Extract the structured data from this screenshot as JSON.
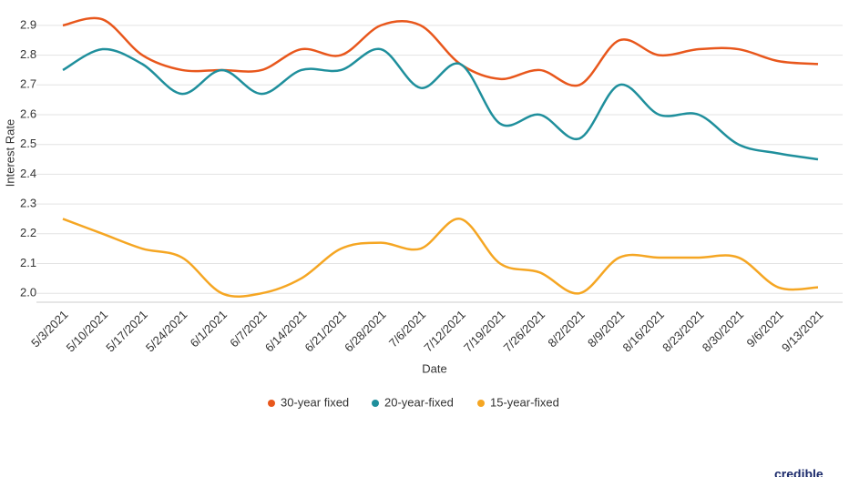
{
  "chart_data": {
    "type": "line",
    "y_label": "Interest Rate",
    "x_label": "Date",
    "categories": [
      "5/3/2021",
      "5/10/2021",
      "5/17/2021",
      "5/24/2021",
      "6/1/2021",
      "6/7/2021",
      "6/14/2021",
      "6/21/2021",
      "6/28/2021",
      "7/6/2021",
      "7/12/2021",
      "7/19/2021",
      "7/26/2021",
      "8/2/2021",
      "8/9/2021",
      "8/16/2021",
      "8/23/2021",
      "8/30/2021",
      "9/6/2021",
      "9/13/2021"
    ],
    "series": [
      {
        "name": "30-year fixed",
        "color": "#e8571c",
        "values": [
          2.9,
          2.92,
          2.8,
          2.75,
          2.75,
          2.75,
          2.82,
          2.8,
          2.9,
          2.9,
          2.77,
          2.72,
          2.75,
          2.7,
          2.85,
          2.8,
          2.82,
          2.82,
          2.78,
          2.77
        ]
      },
      {
        "name": "20-year-fixed",
        "color": "#1f8f9c",
        "values": [
          2.75,
          2.82,
          2.77,
          2.67,
          2.75,
          2.67,
          2.75,
          2.75,
          2.82,
          2.69,
          2.77,
          2.57,
          2.6,
          2.52,
          2.7,
          2.6,
          2.6,
          2.5,
          2.47,
          2.45
        ]
      },
      {
        "name": "15-year-fixed",
        "color": "#f5a623",
        "values": [
          2.25,
          2.2,
          2.15,
          2.12,
          2.0,
          2.0,
          2.05,
          2.15,
          2.17,
          2.15,
          2.25,
          2.1,
          2.07,
          2.0,
          2.12,
          2.12,
          2.12,
          2.12,
          2.02,
          2.02
        ]
      }
    ],
    "ylim": [
      1.97,
      2.97
    ],
    "yticks": [
      {
        "value": 2,
        "label": "2.0"
      },
      2.1,
      2.2,
      2.3,
      2.4,
      2.5,
      2.6,
      2.7,
      2.8,
      2.9
    ],
    "grid": true,
    "legend": "bottom"
  },
  "brand": "credible"
}
